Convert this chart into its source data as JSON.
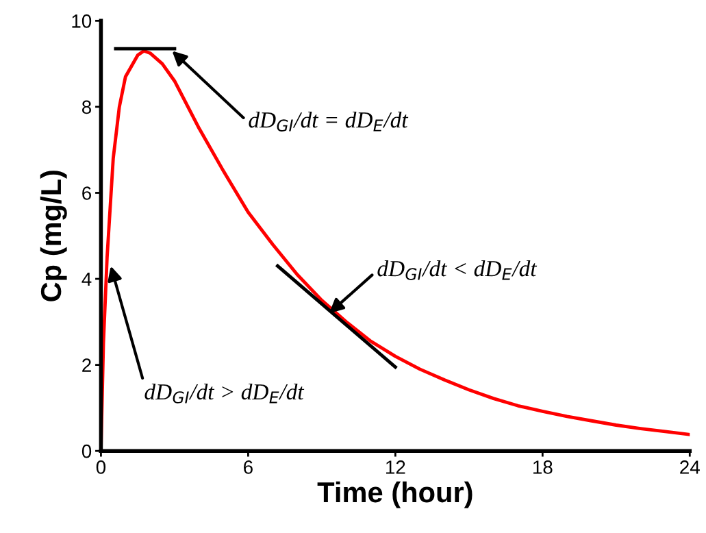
{
  "chart_data": {
    "type": "line",
    "xlabel": "Time (hour)",
    "ylabel": "Cp (mg/L)",
    "xlim": [
      0,
      24
    ],
    "xticks": [
      0,
      6,
      12,
      18,
      24
    ],
    "ylim": [
      0,
      10
    ],
    "yticks": [
      0,
      2,
      4,
      6,
      8,
      10
    ],
    "grid": false,
    "legend": false,
    "marker": "none",
    "line_style": "solid",
    "series": [
      {
        "color": "#ff0000",
        "x": [
          0,
          0.1,
          0.25,
          0.5,
          0.75,
          1.0,
          1.5,
          1.75,
          2.0,
          2.5,
          3,
          4,
          5,
          6,
          7,
          8,
          9,
          10,
          11,
          12,
          13,
          14,
          15,
          16,
          17,
          18,
          19,
          20,
          21,
          22,
          23,
          24
        ],
        "values": [
          0,
          2.5,
          4.5,
          6.8,
          8.0,
          8.7,
          9.2,
          9.3,
          9.25,
          9.0,
          8.6,
          7.5,
          6.5,
          5.55,
          4.8,
          4.1,
          3.5,
          3.0,
          2.55,
          2.2,
          1.9,
          1.65,
          1.42,
          1.22,
          1.05,
          0.92,
          0.8,
          0.7,
          0.6,
          0.52,
          0.45,
          0.38
        ]
      },
      {
        "color": "#000000",
        "x": [
          0.6,
          3.0
        ],
        "values": [
          9.35,
          9.35
        ]
      },
      {
        "color": "#000000",
        "x": [
          7.2,
          12.0
        ],
        "values": [
          4.3,
          1.95
        ]
      }
    ],
    "annotations": [
      {
        "text": "dD$_{GI}$/dt = dD$_{E}$/dt",
        "x": 2.9,
        "y": 9.3
      },
      {
        "text": "dD$_{GI}$/dt < dD$_{E}$/dt",
        "x": 9.3,
        "y": 3.2
      },
      {
        "text": "dD$_{GI}$/dt > dD$_{E}$/dt",
        "x": 0.4,
        "y": 4.3
      }
    ]
  }
}
